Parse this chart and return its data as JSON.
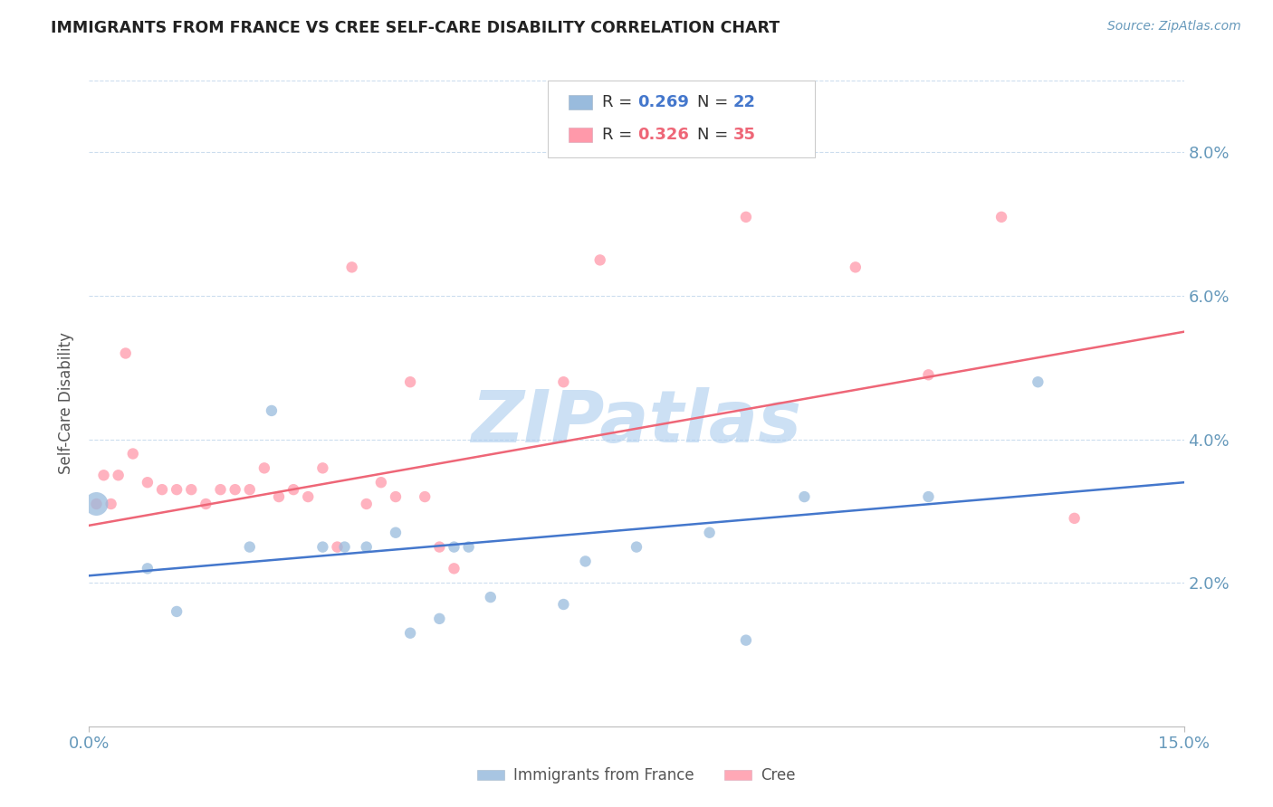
{
  "title": "IMMIGRANTS FROM FRANCE VS CREE SELF-CARE DISABILITY CORRELATION CHART",
  "source": "Source: ZipAtlas.com",
  "ylabel": "Self-Care Disability",
  "xmin": 0.0,
  "xmax": 0.15,
  "ymin": 0.0,
  "ymax": 0.09,
  "yticks": [
    0.02,
    0.04,
    0.06,
    0.08
  ],
  "ytick_labels": [
    "2.0%",
    "4.0%",
    "6.0%",
    "8.0%"
  ],
  "xtick_labels": [
    "0.0%",
    "15.0%"
  ],
  "legend_label_blue": "Immigrants from France",
  "legend_label_pink": "Cree",
  "blue_color": "#99BBDD",
  "pink_color": "#FF99AA",
  "blue_line_color": "#4477CC",
  "pink_line_color": "#EE6677",
  "blue_scatter_x": [
    0.001,
    0.008,
    0.012,
    0.022,
    0.025,
    0.032,
    0.035,
    0.038,
    0.042,
    0.044,
    0.048,
    0.05,
    0.052,
    0.055,
    0.065,
    0.068,
    0.075,
    0.085,
    0.09,
    0.098,
    0.115,
    0.13
  ],
  "blue_scatter_y": [
    0.031,
    0.022,
    0.016,
    0.025,
    0.044,
    0.025,
    0.025,
    0.025,
    0.027,
    0.013,
    0.015,
    0.025,
    0.025,
    0.018,
    0.017,
    0.023,
    0.025,
    0.027,
    0.012,
    0.032,
    0.032,
    0.048
  ],
  "blue_scatter_size": [
    350,
    80,
    80,
    80,
    80,
    80,
    80,
    80,
    80,
    80,
    80,
    80,
    80,
    80,
    80,
    80,
    80,
    80,
    80,
    80,
    80,
    80
  ],
  "pink_scatter_x": [
    0.001,
    0.002,
    0.003,
    0.004,
    0.005,
    0.006,
    0.008,
    0.01,
    0.012,
    0.014,
    0.016,
    0.018,
    0.02,
    0.022,
    0.024,
    0.026,
    0.028,
    0.03,
    0.032,
    0.034,
    0.036,
    0.038,
    0.04,
    0.042,
    0.044,
    0.046,
    0.048,
    0.05,
    0.065,
    0.07,
    0.09,
    0.105,
    0.115,
    0.125,
    0.135
  ],
  "pink_scatter_y": [
    0.031,
    0.035,
    0.031,
    0.035,
    0.052,
    0.038,
    0.034,
    0.033,
    0.033,
    0.033,
    0.031,
    0.033,
    0.033,
    0.033,
    0.036,
    0.032,
    0.033,
    0.032,
    0.036,
    0.025,
    0.064,
    0.031,
    0.034,
    0.032,
    0.048,
    0.032,
    0.025,
    0.022,
    0.048,
    0.065,
    0.071,
    0.064,
    0.049,
    0.071,
    0.029
  ],
  "pink_scatter_size": [
    80,
    80,
    80,
    80,
    80,
    80,
    80,
    80,
    80,
    80,
    80,
    80,
    80,
    80,
    80,
    80,
    80,
    80,
    80,
    80,
    80,
    80,
    80,
    80,
    80,
    80,
    80,
    80,
    80,
    80,
    80,
    80,
    80,
    80,
    80
  ],
  "blue_line_x": [
    0.0,
    0.15
  ],
  "blue_line_y": [
    0.021,
    0.034
  ],
  "pink_line_x": [
    0.0,
    0.15
  ],
  "pink_line_y": [
    0.028,
    0.055
  ],
  "watermark": "ZIPatlas",
  "watermark_color": "#AACCEE",
  "background_color": "#FFFFFF",
  "grid_color": "#CCDDEE",
  "title_color": "#222222",
  "tick_color": "#6699BB"
}
